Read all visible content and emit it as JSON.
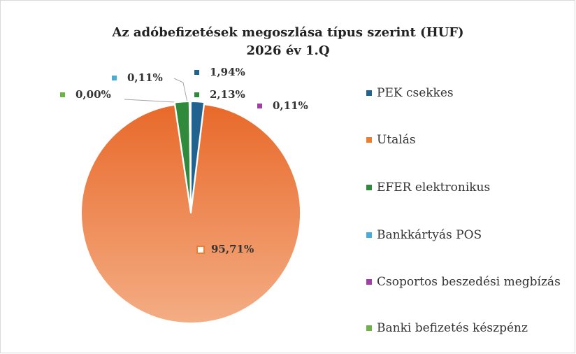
{
  "chart_data": {
    "type": "pie",
    "title": "Az adóbefizetések megoszlása típus szerint (HUF)",
    "subtitle": "2026 év 1.Q",
    "categories": [
      "PEK csekkes",
      "Utalás",
      "EFER elektronikus",
      "Bankkártyás POS",
      "Csoportos beszedési megbízás",
      "Banki befizetés készpénz"
    ],
    "values": [
      1.94,
      95.71,
      2.13,
      0.11,
      0.11,
      0.0
    ],
    "value_labels": [
      "1,94%",
      "95,71%",
      "2,13%",
      "0,11%",
      "0,11%",
      "0,00%"
    ],
    "colors": [
      "#21628f",
      "#ed7d31",
      "#2f8a3b",
      "#4bacd6",
      "#a23fa6",
      "#6fb348"
    ],
    "legend": "right"
  }
}
